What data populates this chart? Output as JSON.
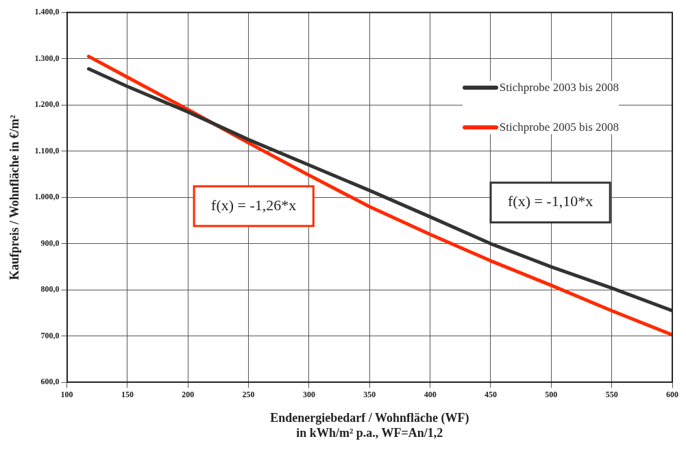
{
  "chart_data": {
    "type": "line",
    "xlabel": "Endenergiebedarf / Wohnfläche (WF)\nin kWh/m² p.a., WF=An/1,2",
    "ylabel": "Kaufpreis / Wohnfläche in €/m²",
    "x": [
      118,
      150,
      200,
      250,
      300,
      350,
      400,
      450,
      500,
      550,
      600
    ],
    "series": [
      {
        "name": "Stichprobe 2003 bis 2008",
        "color": "#333333",
        "values": [
          1278,
          1240,
          1185,
          1125,
          1070,
          1015,
          958,
          900,
          850,
          804,
          755
        ]
      },
      {
        "name": "Stichprobe 2005 bis 2008",
        "color": "#ff2a00",
        "values": [
          1305,
          1260,
          1190,
          1118,
          1048,
          980,
          920,
          863,
          810,
          755,
          703
        ]
      }
    ],
    "annotations": [
      "f(x) = -1,26*x",
      "f(x) = -1,10*x"
    ],
    "xlim": [
      100,
      600
    ],
    "xticks": [
      100,
      150,
      200,
      250,
      300,
      350,
      400,
      450,
      500,
      550,
      600
    ],
    "ylim": [
      600,
      1400
    ],
    "yticks": [
      {
        "value": 600,
        "label": "600,0"
      },
      {
        "value": 700,
        "label": "700,0"
      },
      {
        "value": 800,
        "label": "800,0"
      },
      {
        "value": 900,
        "label": "900,0"
      },
      {
        "value": 1000,
        "label": "1.000,0"
      },
      {
        "value": 1100,
        "label": "1.100,0"
      },
      {
        "value": 1200,
        "label": "1.200,0"
      },
      {
        "value": 1300,
        "label": "1.300,0"
      },
      {
        "value": 1400,
        "label": "1.400,0"
      }
    ],
    "grid": true,
    "legend": "top right",
    "marker": "none",
    "line_style": "solid"
  }
}
